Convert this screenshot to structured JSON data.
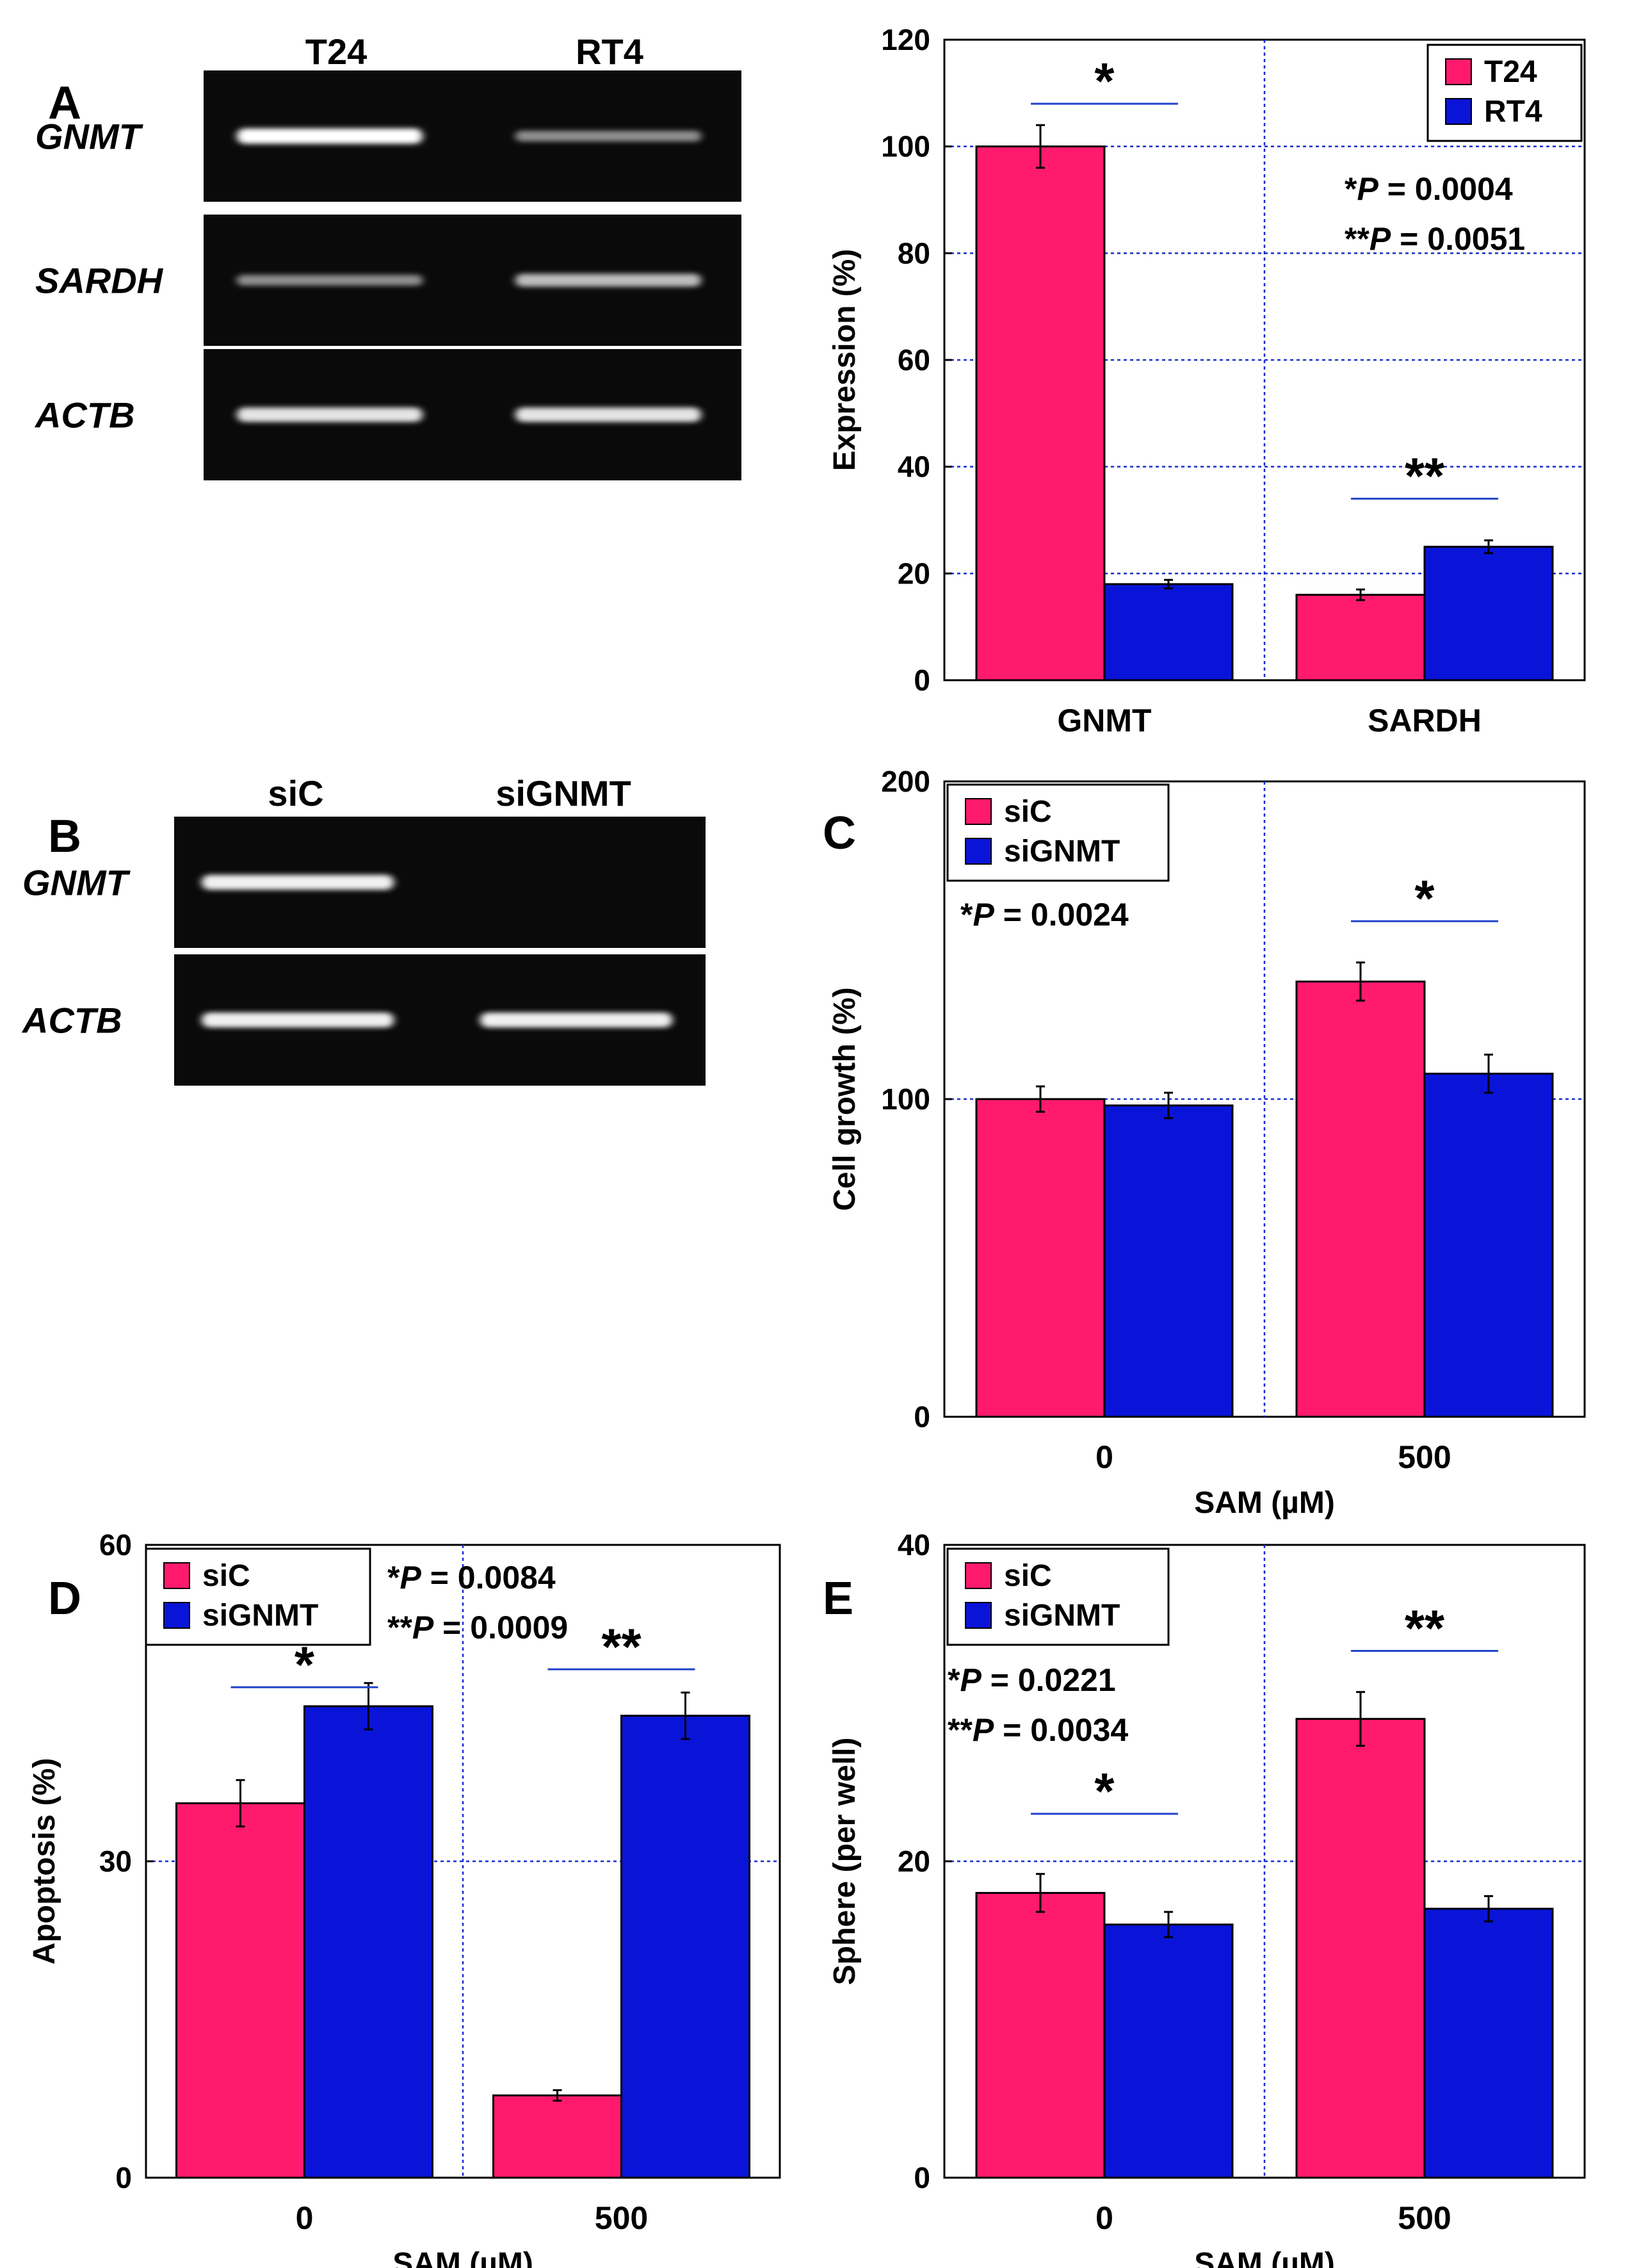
{
  "panel_labels": {
    "A": "A",
    "B": "B",
    "C": "C",
    "D": "D",
    "E": "E"
  },
  "colors": {
    "series1": "#ff1a6e",
    "series2": "#0a14d8",
    "grid": "#1a2ad6",
    "sigline": "#2244cc"
  },
  "gels": [
    {
      "id": "gelA",
      "lanes": [
        "T24",
        "RT4"
      ],
      "rows": [
        {
          "gene": "GNMT",
          "bands": [
            1.0,
            0.55
          ]
        },
        {
          "gene": "SARDH",
          "bands": [
            0.55,
            0.75
          ]
        },
        {
          "gene": "ACTB",
          "bands": [
            0.9,
            0.9
          ]
        }
      ]
    },
    {
      "id": "gelB",
      "lanes": [
        "siC",
        "siGNMT"
      ],
      "rows": [
        {
          "gene": "GNMT",
          "bands": [
            0.95,
            0.0
          ]
        },
        {
          "gene": "ACTB",
          "bands": [
            0.95,
            0.95
          ]
        }
      ]
    }
  ],
  "chart_data": [
    {
      "id": "A",
      "type": "bar",
      "categories": [
        "GNMT",
        "SARDH"
      ],
      "series": [
        {
          "name": "T24",
          "values": [
            100,
            16
          ],
          "errors": [
            4,
            1
          ]
        },
        {
          "name": "RT4",
          "values": [
            18,
            25
          ],
          "errors": [
            0.8,
            1.2
          ]
        }
      ],
      "xlabel": "",
      "ylabel": "Expression (%)",
      "ylim": [
        0,
        120
      ],
      "yticks": [
        "0",
        "20",
        "40",
        "60",
        "80",
        "100",
        "120"
      ],
      "gridlines": [
        20,
        40,
        60,
        80,
        100
      ],
      "legend": "top-right",
      "annotations": [
        "*P = 0.0004",
        "**P = 0.0051"
      ],
      "significance": [
        {
          "label": "*",
          "category": 0,
          "y": 108
        },
        {
          "label": "**",
          "category": 1,
          "y": 34
        }
      ]
    },
    {
      "id": "C",
      "type": "bar",
      "categories": [
        "0",
        "500"
      ],
      "series": [
        {
          "name": "siC",
          "values": [
            100,
            137
          ],
          "errors": [
            4,
            6
          ]
        },
        {
          "name": "siGNMT",
          "values": [
            98,
            108
          ],
          "errors": [
            4,
            6
          ]
        }
      ],
      "xlabel": "SAM (µM)",
      "ylabel": "Cell growth (%)",
      "ylim": [
        0,
        200
      ],
      "yticks": [
        "0",
        "100",
        "200"
      ],
      "gridlines": [
        100
      ],
      "legend": "top-left",
      "annotations": [
        "*P = 0.0024"
      ],
      "significance": [
        {
          "label": "*",
          "category": 1,
          "y": 156
        }
      ]
    },
    {
      "id": "D",
      "type": "bar",
      "categories": [
        "0",
        "500"
      ],
      "series": [
        {
          "name": "siC",
          "values": [
            35.5,
            7.8
          ],
          "errors": [
            2.2,
            0.5
          ]
        },
        {
          "name": "siGNMT",
          "values": [
            44.7,
            43.8
          ],
          "errors": [
            2.2,
            2.2
          ]
        }
      ],
      "xlabel": "SAM (µM)",
      "ylabel": "Apoptosis (%)",
      "ylim": [
        0,
        60
      ],
      "yticks": [
        "0",
        "30",
        "60"
      ],
      "gridlines": [
        30
      ],
      "legend": "top-left",
      "annotations": [
        "*P = 0.0084",
        "**P = 0.0009"
      ],
      "significance": [
        {
          "label": "*",
          "category": 0,
          "y": 46.5
        },
        {
          "label": "**",
          "category": 1,
          "y": 48.2
        }
      ]
    },
    {
      "id": "E",
      "type": "bar",
      "categories": [
        "0",
        "500"
      ],
      "series": [
        {
          "name": "siC",
          "values": [
            18,
            29
          ],
          "errors": [
            1.2,
            1.7
          ]
        },
        {
          "name": "siGNMT",
          "values": [
            16,
            17
          ],
          "errors": [
            0.8,
            0.8
          ]
        }
      ],
      "xlabel": "SAM (µM)",
      "ylabel": "Sphere (per well)",
      "ylim": [
        0,
        40
      ],
      "yticks": [
        "0",
        "20",
        "40"
      ],
      "gridlines": [
        20
      ],
      "legend": "top-left",
      "annotations": [
        "*P = 0.0221",
        "**P = 0.0034"
      ],
      "significance": [
        {
          "label": "*",
          "category": 0,
          "y": 23
        },
        {
          "label": "**",
          "category": 1,
          "y": 33.3
        }
      ]
    }
  ]
}
